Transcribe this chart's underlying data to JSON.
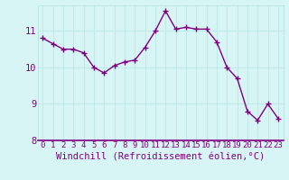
{
  "hours": [
    0,
    1,
    2,
    3,
    4,
    5,
    6,
    7,
    8,
    9,
    10,
    11,
    12,
    13,
    14,
    15,
    16,
    17,
    18,
    19,
    20,
    21,
    22,
    23
  ],
  "values": [
    10.8,
    10.65,
    10.5,
    10.5,
    10.4,
    10.0,
    9.85,
    10.05,
    10.15,
    10.2,
    10.55,
    11.0,
    11.55,
    11.05,
    11.1,
    11.05,
    11.05,
    10.7,
    10.0,
    9.7,
    8.8,
    8.55,
    9.0,
    8.6
  ],
  "line_color": "#800080",
  "marker": "+",
  "marker_size": 4,
  "bg_color": "#d8f5f5",
  "grid_color": "#b0e0e0",
  "ylim": [
    8,
    11.7
  ],
  "yticks": [
    8,
    9,
    10,
    11
  ],
  "xticks": [
    0,
    1,
    2,
    3,
    4,
    5,
    6,
    7,
    8,
    9,
    10,
    11,
    12,
    13,
    14,
    15,
    16,
    17,
    18,
    19,
    20,
    21,
    22,
    23
  ],
  "xlabel": "Windchill (Refroidissement éolien,°C)",
  "xlabel_color": "#800080",
  "tick_color": "#800080",
  "tick_fontsize": 6.5,
  "xlabel_fontsize": 7.5,
  "linewidth": 1.0,
  "markeredgewidth": 1.0,
  "spine_color": "#800080",
  "bottom_spine_color": "#800080"
}
